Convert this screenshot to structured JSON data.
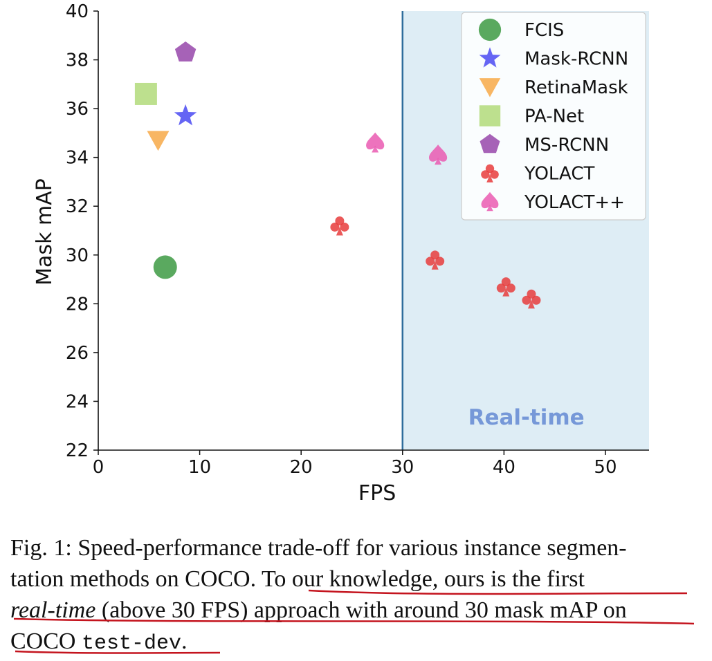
{
  "chart_data": {
    "type": "scatter",
    "xlabel": "FPS",
    "ylabel": "Mask mAP",
    "xlim": [
      0,
      54.3
    ],
    "ylim": [
      22,
      40
    ],
    "xticks": [
      0,
      10,
      20,
      30,
      40,
      50
    ],
    "yticks": [
      22,
      24,
      26,
      28,
      30,
      32,
      34,
      36,
      38,
      40
    ],
    "xtick_labels": [
      "0",
      "10",
      "20",
      "30",
      "40",
      "50"
    ],
    "ytick_labels": [
      "22",
      "24",
      "26",
      "28",
      "30",
      "32",
      "34",
      "36",
      "38",
      "40"
    ],
    "grid": false,
    "legend_position": "top-right",
    "realtime_region": {
      "x_start": 30,
      "label": "Real-time",
      "fill_color": "#deedf5",
      "line_color": "#2f6d9c",
      "label_color": "#7698d8"
    },
    "series": [
      {
        "name": "FCIS",
        "marker": "circle",
        "color": "#3d9a43",
        "points": [
          [
            6.6,
            29.5
          ]
        ]
      },
      {
        "name": "Mask-RCNN",
        "marker": "star",
        "color": "#4a4af2",
        "points": [
          [
            8.6,
            35.7
          ]
        ]
      },
      {
        "name": "RetinaMask",
        "marker": "triangle-down",
        "color": "#f7a948",
        "points": [
          [
            5.9,
            34.7
          ]
        ]
      },
      {
        "name": "PA-Net",
        "marker": "square",
        "color": "#b2db7a",
        "points": [
          [
            4.7,
            36.6
          ]
        ]
      },
      {
        "name": "MS-RCNN",
        "marker": "pentagon",
        "color": "#9747aa",
        "points": [
          [
            8.6,
            38.3
          ]
        ]
      },
      {
        "name": "YOLACT",
        "marker": "club",
        "color": "#e83c3c",
        "points": [
          [
            23.8,
            31.2
          ],
          [
            33.2,
            29.8
          ],
          [
            40.2,
            28.7
          ],
          [
            42.7,
            28.2
          ]
        ]
      },
      {
        "name": "YOLACT++",
        "marker": "spade",
        "color": "#ea5bb2",
        "points": [
          [
            27.3,
            34.6
          ],
          [
            33.5,
            34.1
          ]
        ]
      }
    ]
  },
  "caption": {
    "prefix": "Fig. 1:",
    "text1": " Speed-performance trade-off for various instance segmen-",
    "text2": "tation methods on COCO. ",
    "text3": "To our knowledge, ours is the first",
    "italic": "real-time",
    "text4": " (above 30 FPS) approach with around 30 mask mAP on",
    "text5": "COCO ",
    "mono": "test-dev",
    "text6": "."
  },
  "annotation": {
    "underline_color": "#c4141e"
  }
}
